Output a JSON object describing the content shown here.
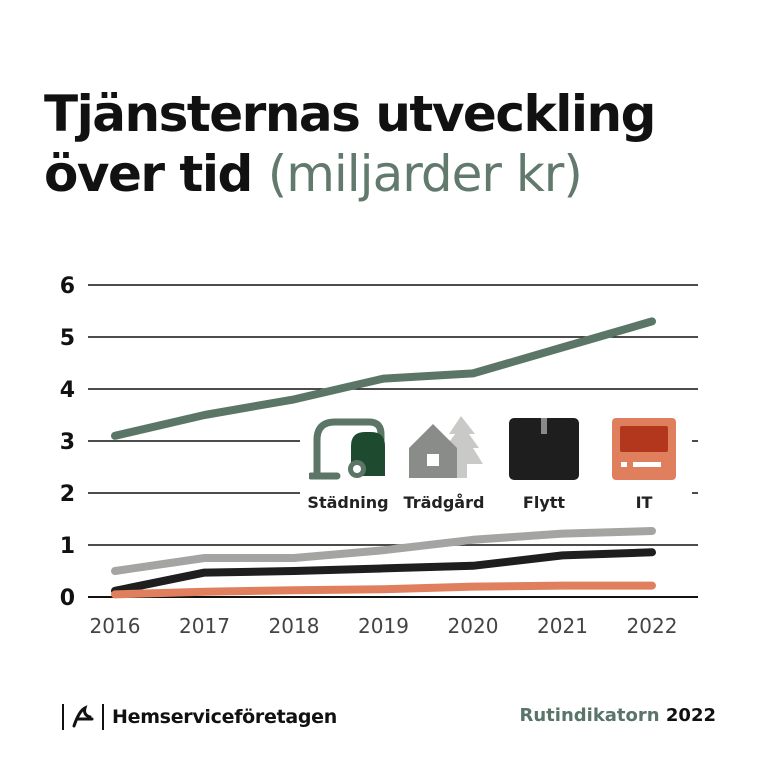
{
  "title_main": "Tjänsternas utveckling över tid",
  "title_sub": "(miljarder kr)",
  "footer": {
    "brand": "Hemserviceföretagen",
    "report_name": "Rutindikatorn",
    "report_year": "2022"
  },
  "legend": [
    {
      "label": "Städning",
      "icon": "vacuum-cleaner-icon",
      "color": "#5b7667"
    },
    {
      "label": "Trädgård",
      "icon": "house-tree-icon",
      "color": "#a4a5a3"
    },
    {
      "label": "Flytt",
      "icon": "moving-box-icon",
      "color": "#1e1e1e"
    },
    {
      "label": "IT",
      "icon": "computer-icon",
      "color": "#e07f5e"
    }
  ],
  "chart_data": {
    "type": "line",
    "categories": [
      "2016",
      "2017",
      "2018",
      "2019",
      "2020",
      "2021",
      "2022"
    ],
    "ylim": [
      0,
      6
    ],
    "yticks": [
      "0",
      "1",
      "2",
      "3",
      "4",
      "5",
      "6"
    ],
    "grid": true,
    "series": [
      {
        "name": "Städning",
        "color": "#5b7667",
        "values": [
          3.1,
          3.5,
          3.8,
          4.2,
          4.3,
          4.8,
          5.3
        ]
      },
      {
        "name": "Trädgård",
        "color": "#a4a5a3",
        "values": [
          0.5,
          0.75,
          0.75,
          0.9,
          1.1,
          1.22,
          1.27
        ]
      },
      {
        "name": "Flytt",
        "color": "#1e1e1e",
        "values": [
          0.12,
          0.47,
          0.5,
          0.55,
          0.6,
          0.8,
          0.86
        ]
      },
      {
        "name": "IT",
        "color": "#e07f5e",
        "values": [
          0.05,
          0.1,
          0.13,
          0.15,
          0.2,
          0.22,
          0.22
        ]
      }
    ]
  }
}
